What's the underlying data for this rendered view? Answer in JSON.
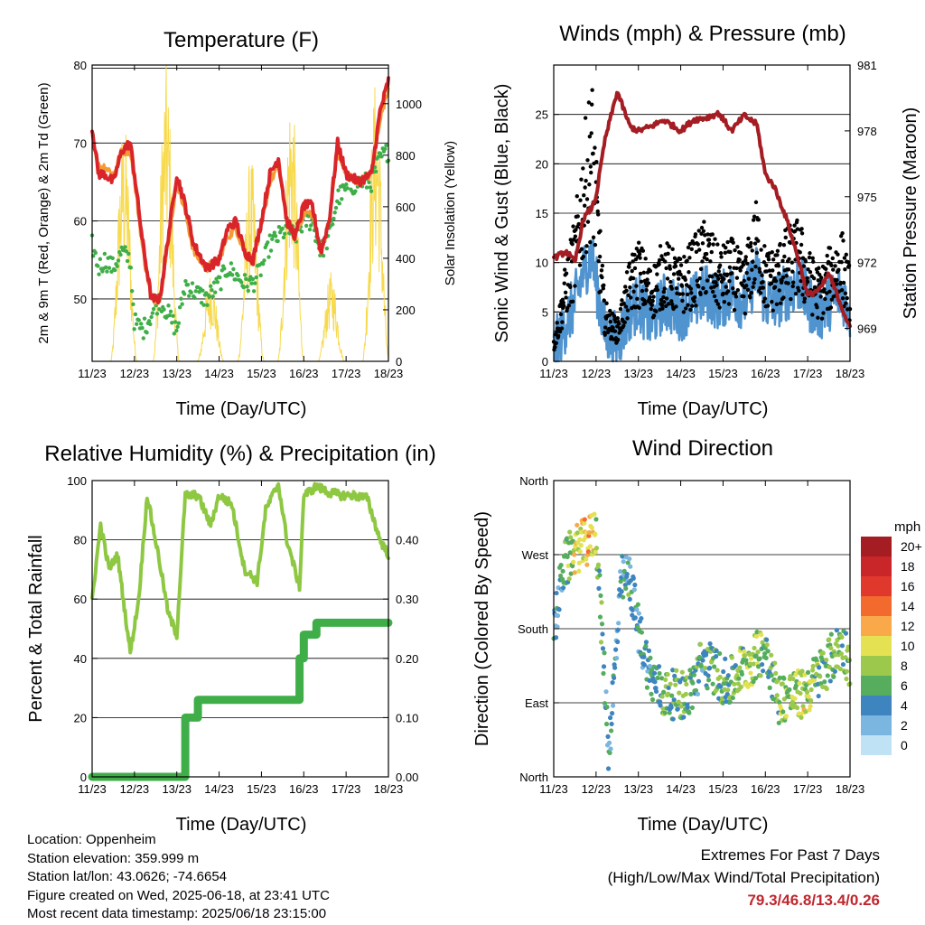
{
  "x_ticks": [
    "11/23",
    "12/23",
    "13/23",
    "14/23",
    "15/23",
    "16/23",
    "17/23",
    "18/23"
  ],
  "panels": {
    "temperature": {
      "title": "Temperature (F)",
      "xlabel": "Time (Day/UTC)",
      "ylabel_left": "2m & 9m T (Red, Orange) & 2m Td (Green)",
      "ylabel_right": "Solar Insolation (Yellow)"
    },
    "winds": {
      "title": "Winds (mph) & Pressure (mb)",
      "xlabel": "Time (Day/UTC)",
      "ylabel_left": "Sonic Wind & Gust (Blue, Black)",
      "ylabel_right": "Station Pressure (Maroon)"
    },
    "humidity": {
      "title": "Relative Humidity (%) & Precipitation (in)",
      "xlabel": "Time (Day/UTC)",
      "ylabel_left": "Percent & Total Rainfall"
    },
    "direction": {
      "title": "Wind Direction",
      "xlabel": "Time (Day/UTC)",
      "ylabel_left": "Direction (Colored By Speed)",
      "colorbar_title": "mph",
      "colorbar_labels": [
        "20+",
        "18",
        "16",
        "14",
        "12",
        "10",
        "8",
        "6",
        "4",
        "2",
        "0"
      ],
      "colorbar_colors": [
        "#a31d23",
        "#c9262a",
        "#e0382d",
        "#f26a2e",
        "#f9a84a",
        "#e4e253",
        "#9cc94c",
        "#55ad5d",
        "#3e85c0",
        "#7ab6df",
        "#bfe3f5"
      ]
    }
  },
  "info": {
    "location": "Location: Oppenheim",
    "elevation": "Station elevation: 359.999 m",
    "latlon": "Station lat/lon: 43.0626; -74.6654",
    "created": "Figure created on Wed, 2025-06-18, at 23:41 UTC",
    "timestamp": "Most recent data timestamp: 2025/06/18 23:15:00"
  },
  "extremes": {
    "heading": "Extremes For Past 7 Days",
    "subheading": "(High/Low/Max Wind/Total Precipitation)",
    "values": "79.3/46.8/13.4/0.26"
  },
  "colors": {
    "temp_2m": "#d9252a",
    "temp_9m": "#f39a35",
    "dewpoint": "#3fae49",
    "solar": "#f7d94c",
    "wind": "#4f93cf",
    "gust": "#000000",
    "pressure": "#a31d23",
    "rh": "#8ec843",
    "precip": "#3fae49"
  },
  "chart_data": [
    {
      "type": "line",
      "title": "Temperature (F)",
      "xlabel": "Time (Day/UTC)",
      "ylabel": "2m & 9m T (Red, Orange) & 2m Td (Green)",
      "ylabel_right": "Solar Insolation (Yellow)",
      "x": [
        11.0,
        11.15,
        11.3,
        11.5,
        11.7,
        11.9,
        12.0,
        12.2,
        12.4,
        12.6,
        12.8,
        13.0,
        13.2,
        13.4,
        13.7,
        14.0,
        14.2,
        14.4,
        14.6,
        14.8,
        15.0,
        15.2,
        15.4,
        15.6,
        15.8,
        16.0,
        16.2,
        16.4,
        16.6,
        16.8,
        17.0,
        17.3,
        17.6,
        17.8,
        18.0
      ],
      "xlim": [
        11.0,
        18.0
      ],
      "ylim": [
        42,
        80
      ],
      "y2lim": [
        0,
        1150
      ],
      "y2ticks": [
        0,
        200,
        400,
        600,
        800,
        1000
      ],
      "series": [
        {
          "name": "2m T",
          "axis": "left",
          "values": [
            72,
            66,
            66,
            65,
            69,
            70,
            66,
            57,
            50,
            50,
            58,
            66,
            62,
            57,
            54,
            55,
            59,
            60,
            56,
            55,
            60,
            66,
            68,
            60,
            58,
            62,
            62,
            56,
            60,
            70,
            66,
            65,
            66,
            74,
            78
          ]
        },
        {
          "name": "9m T",
          "axis": "left",
          "values": [
            71,
            67,
            67,
            66,
            69,
            69,
            65,
            56,
            50,
            50,
            57,
            65,
            61,
            56,
            54,
            55,
            58,
            59,
            56,
            55,
            59,
            65,
            67,
            60,
            58,
            61,
            61,
            56,
            60,
            69,
            66,
            65,
            66,
            73,
            77
          ]
        },
        {
          "name": "2m Td",
          "axis": "left",
          "values": [
            57,
            54,
            55,
            54,
            56,
            55,
            47,
            46,
            48,
            50,
            48,
            46,
            52,
            51,
            50,
            52,
            54,
            53,
            52,
            52,
            54,
            57,
            58,
            59,
            58,
            60,
            60,
            56,
            58,
            63,
            64,
            65,
            65,
            68,
            69
          ]
        },
        {
          "name": "Solar Insolation",
          "axis": "right",
          "peaks": [
            [
              11.75,
              950
            ],
            [
              12.75,
              1150
            ],
            [
              13.8,
              350
            ],
            [
              14.75,
              800
            ],
            [
              15.7,
              1080
            ],
            [
              16.65,
              350
            ],
            [
              17.7,
              1100
            ]
          ]
        }
      ]
    },
    {
      "type": "scatter",
      "title": "Winds (mph) & Pressure (mb)",
      "xlabel": "Time (Day/UTC)",
      "ylabel": "Sonic Wind & Gust (Blue, Black)",
      "ylabel_right": "Station Pressure (Maroon)",
      "x": [
        11.0,
        11.3,
        11.5,
        11.7,
        11.9,
        12.0,
        12.2,
        12.5,
        12.8,
        13.0,
        13.3,
        13.6,
        14.0,
        14.3,
        14.6,
        14.9,
        15.2,
        15.5,
        15.8,
        16.0,
        16.2,
        16.5,
        16.8,
        17.0,
        17.3,
        17.5,
        17.8,
        18.0
      ],
      "xlim": [
        11.0,
        18.0
      ],
      "ylim": [
        0,
        30
      ],
      "yticks": [
        0,
        5,
        10,
        15,
        20,
        25
      ],
      "y2lim": [
        967.5,
        981
      ],
      "y2ticks": [
        969,
        972,
        975,
        978,
        981
      ],
      "series": [
        {
          "name": "Sonic Wind",
          "axis": "left",
          "values": [
            1,
            4,
            6,
            9,
            11,
            8,
            3,
            2,
            5,
            6,
            4,
            6,
            5,
            6,
            7,
            6,
            7,
            6,
            9,
            6,
            6,
            7,
            8,
            6,
            5,
            6,
            7,
            5
          ]
        },
        {
          "name": "Gust",
          "axis": "left",
          "values": [
            2,
            10,
            14,
            22,
            28,
            20,
            6,
            4,
            10,
            12,
            9,
            12,
            10,
            12,
            14,
            11,
            12,
            10,
            16,
            11,
            11,
            13,
            14,
            11,
            9,
            11,
            13,
            9
          ]
        },
        {
          "name": "Station Pressure",
          "axis": "right",
          "values": [
            972.2,
            972.5,
            972.0,
            974.0,
            974.5,
            975.0,
            977.5,
            979.8,
            978.2,
            978.0,
            978.2,
            978.5,
            978.0,
            978.5,
            978.6,
            978.8,
            978.0,
            978.7,
            978.3,
            976.0,
            975.5,
            974.0,
            972.0,
            970.5,
            970.8,
            971.5,
            970.0,
            969.0
          ]
        }
      ]
    },
    {
      "type": "line",
      "title": "Relative Humidity (%) & Precipitation (in)",
      "xlabel": "Time (Day/UTC)",
      "ylabel": "Percent & Total Rainfall",
      "x": [
        11.0,
        11.2,
        11.4,
        11.6,
        11.9,
        12.1,
        12.3,
        12.6,
        12.8,
        13.0,
        13.2,
        13.5,
        13.8,
        14.0,
        14.3,
        14.6,
        14.9,
        15.1,
        15.4,
        15.6,
        15.9,
        16.0,
        16.3,
        16.6,
        16.9,
        17.2,
        17.5,
        17.8,
        18.0
      ],
      "xlim": [
        11.0,
        18.0
      ],
      "ylim": [
        0,
        100
      ],
      "yticks": [
        0,
        20,
        40,
        60,
        80,
        100
      ],
      "y2lim": [
        0,
        0.5
      ],
      "y2ticks": [
        0.0,
        0.1,
        0.2,
        0.3,
        0.4
      ],
      "series": [
        {
          "name": "Relative Humidity",
          "axis": "left",
          "values": [
            60,
            85,
            70,
            75,
            42,
            60,
            95,
            72,
            55,
            48,
            95,
            95,
            85,
            95,
            92,
            70,
            66,
            90,
            99,
            80,
            64,
            95,
            98,
            96,
            95,
            95,
            94,
            80,
            75
          ]
        },
        {
          "name": "Precipitation",
          "axis": "right",
          "values": [
            0,
            0,
            0,
            0,
            0,
            0,
            0,
            0,
            0,
            0,
            0.1,
            0.13,
            0.13,
            0.13,
            0.13,
            0.13,
            0.13,
            0.13,
            0.13,
            0.13,
            0.2,
            0.24,
            0.26,
            0.26,
            0.26,
            0.26,
            0.26,
            0.26,
            0.26
          ]
        }
      ]
    },
    {
      "type": "scatter",
      "title": "Wind Direction",
      "xlabel": "Time (Day/UTC)",
      "ylabel": "Direction (Colored By Speed)",
      "xlim": [
        11.0,
        18.0
      ],
      "ylim": [
        0,
        360
      ],
      "ytick_labels": [
        "North",
        "East",
        "South",
        "West",
        "North"
      ],
      "ytick_values": [
        0,
        90,
        180,
        270,
        360
      ],
      "colorbar": {
        "title": "mph",
        "labels": [
          "20+",
          "18",
          "16",
          "14",
          "12",
          "10",
          "8",
          "6",
          "4",
          "2",
          "0"
        ]
      },
      "x": [
        11.0,
        11.2,
        11.4,
        11.6,
        11.8,
        12.0,
        12.3,
        12.6,
        12.8,
        13.0,
        13.3,
        13.6,
        13.9,
        14.2,
        14.5,
        14.8,
        15.1,
        15.4,
        15.7,
        16.0,
        16.3,
        16.6,
        16.9,
        17.2,
        17.5,
        17.8,
        18.0
      ],
      "direction": [
        170,
        250,
        270,
        280,
        285,
        300,
        30,
        240,
        240,
        180,
        120,
        100,
        100,
        100,
        140,
        130,
        110,
        130,
        140,
        160,
        95,
        100,
        100,
        120,
        140,
        160,
        140
      ],
      "speed": [
        3,
        4,
        8,
        10,
        12,
        8,
        3,
        4,
        5,
        4,
        5,
        7,
        6,
        6,
        5,
        6,
        6,
        7,
        8,
        6,
        7,
        8,
        9,
        7,
        6,
        7,
        6
      ]
    }
  ]
}
